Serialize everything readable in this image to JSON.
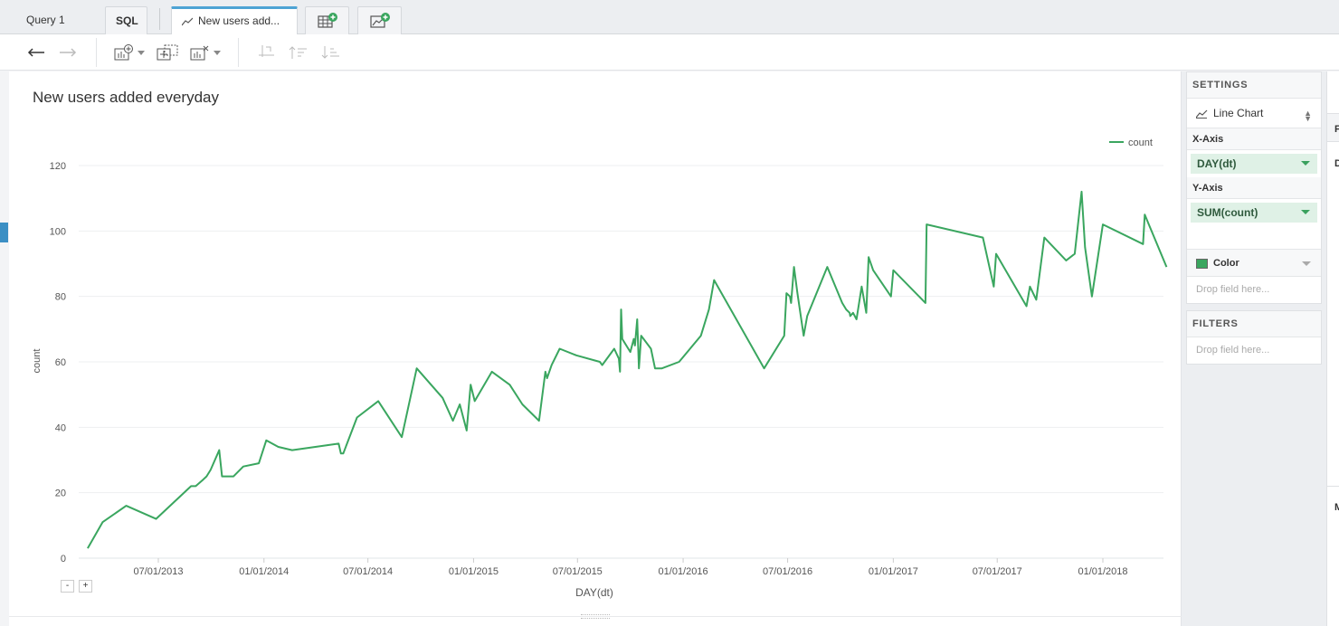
{
  "tabs": {
    "query": "Query 1",
    "sql": "SQL",
    "active": "New users add..."
  },
  "chart": {
    "title": "New users added everyday",
    "legend": "count"
  },
  "chart_data": {
    "type": "line",
    "title": "New users added everyday",
    "xlabel": "DAY(dt)",
    "ylabel": "count",
    "ylim": [
      0,
      120
    ],
    "yticks": [
      0,
      20,
      40,
      60,
      80,
      100,
      120
    ],
    "xticks": [
      "07/01/2013",
      "01/01/2014",
      "07/01/2014",
      "01/01/2015",
      "07/01/2015",
      "01/01/2016",
      "07/01/2016",
      "01/01/2017",
      "07/01/2017",
      "01/01/2018"
    ],
    "xtick_dates": [
      "2013-07-01",
      "2014-01-01",
      "2014-07-01",
      "2015-01-01",
      "2015-07-01",
      "2016-01-01",
      "2016-07-01",
      "2017-01-01",
      "2017-07-01",
      "2018-01-01"
    ],
    "legend": "top-right",
    "grid": true,
    "series": [
      {
        "name": "count",
        "color": "#3aa65f",
        "points": [
          [
            "2013-02-28",
            3
          ],
          [
            "2013-03-26",
            11
          ],
          [
            "2013-05-06",
            16
          ],
          [
            "2013-06-27",
            12
          ],
          [
            "2013-08-27",
            22
          ],
          [
            "2013-09-04",
            22
          ],
          [
            "2013-09-17",
            24
          ],
          [
            "2013-09-23",
            25
          ],
          [
            "2013-09-30",
            27
          ],
          [
            "2013-10-15",
            33
          ],
          [
            "2013-10-20",
            25
          ],
          [
            "2013-11-09",
            25
          ],
          [
            "2013-11-26",
            28
          ],
          [
            "2013-12-23",
            29
          ],
          [
            "2014-01-05",
            36
          ],
          [
            "2014-01-26",
            34
          ],
          [
            "2014-02-19",
            33
          ],
          [
            "2014-05-11",
            35
          ],
          [
            "2014-05-15",
            32
          ],
          [
            "2014-05-19",
            32
          ],
          [
            "2014-06-12",
            43
          ],
          [
            "2014-07-19",
            48
          ],
          [
            "2014-08-29",
            37
          ],
          [
            "2014-09-24",
            58
          ],
          [
            "2014-11-08",
            49
          ],
          [
            "2014-11-26",
            42
          ],
          [
            "2014-12-08",
            47
          ],
          [
            "2014-12-20",
            39
          ],
          [
            "2014-12-27",
            53
          ],
          [
            "2015-01-03",
            48
          ],
          [
            "2015-02-02",
            57
          ],
          [
            "2015-03-05",
            53
          ],
          [
            "2015-03-27",
            47
          ],
          [
            "2015-04-25",
            42
          ],
          [
            "2015-05-06",
            57
          ],
          [
            "2015-05-09",
            55
          ],
          [
            "2015-05-17",
            59
          ],
          [
            "2015-05-31",
            64
          ],
          [
            "2015-06-29",
            62
          ],
          [
            "2015-08-09",
            60
          ],
          [
            "2015-08-13",
            59
          ],
          [
            "2015-09-03",
            64
          ],
          [
            "2015-09-11",
            61
          ],
          [
            "2015-09-13",
            57
          ],
          [
            "2015-09-15",
            76
          ],
          [
            "2015-09-17",
            67
          ],
          [
            "2015-10-01",
            63
          ],
          [
            "2015-10-07",
            67
          ],
          [
            "2015-10-09",
            65
          ],
          [
            "2015-10-13",
            73
          ],
          [
            "2015-10-16",
            58
          ],
          [
            "2015-10-20",
            68
          ],
          [
            "2015-11-06",
            64
          ],
          [
            "2015-11-13",
            58
          ],
          [
            "2015-11-25",
            58
          ],
          [
            "2015-12-25",
            60
          ],
          [
            "2016-02-01",
            68
          ],
          [
            "2016-02-15",
            76
          ],
          [
            "2016-02-24",
            85
          ],
          [
            "2016-05-21",
            58
          ],
          [
            "2016-06-25",
            68
          ],
          [
            "2016-06-29",
            81
          ],
          [
            "2016-07-05",
            80
          ],
          [
            "2016-07-07",
            78
          ],
          [
            "2016-07-12",
            89
          ],
          [
            "2016-07-18",
            81
          ],
          [
            "2016-07-29",
            68
          ],
          [
            "2016-08-04",
            74
          ],
          [
            "2016-09-08",
            89
          ],
          [
            "2016-10-04",
            78
          ],
          [
            "2016-10-11",
            76
          ],
          [
            "2016-10-17",
            75
          ],
          [
            "2016-10-18",
            74
          ],
          [
            "2016-10-23",
            75
          ],
          [
            "2016-10-29",
            73
          ],
          [
            "2016-11-07",
            83
          ],
          [
            "2016-11-15",
            75
          ],
          [
            "2016-11-19",
            92
          ],
          [
            "2016-11-27",
            88
          ],
          [
            "2016-12-28",
            80
          ],
          [
            "2017-01-01",
            88
          ],
          [
            "2017-02-26",
            78
          ],
          [
            "2017-02-28",
            102
          ],
          [
            "2017-06-06",
            98
          ],
          [
            "2017-06-25",
            83
          ],
          [
            "2017-06-29",
            93
          ],
          [
            "2017-08-21",
            77
          ],
          [
            "2017-08-27",
            83
          ],
          [
            "2017-09-07",
            79
          ],
          [
            "2017-09-21",
            98
          ],
          [
            "2017-10-29",
            91
          ],
          [
            "2017-11-13",
            93
          ],
          [
            "2017-11-25",
            112
          ],
          [
            "2017-12-01",
            95
          ],
          [
            "2017-12-13",
            80
          ],
          [
            "2018-01-01",
            102
          ],
          [
            "2018-03-12",
            96
          ],
          [
            "2018-03-15",
            105
          ],
          [
            "2018-04-22",
            89
          ]
        ]
      }
    ]
  },
  "settings": {
    "header": "SETTINGS",
    "chart_type": "Line Chart",
    "x_axis_label": "X-Axis",
    "x_axis_field": "DAY(dt)",
    "y_axis_label": "Y-Axis",
    "y_axis_field": "SUM(count)",
    "color_label": "Color",
    "color_swatch": "#3aa65f",
    "drop_placeholder": "Drop field here..."
  },
  "filters": {
    "header": "FILTERS",
    "drop_placeholder": "Drop field here..."
  },
  "far_right": {
    "f": "F",
    "d": "D",
    "m": "M"
  }
}
